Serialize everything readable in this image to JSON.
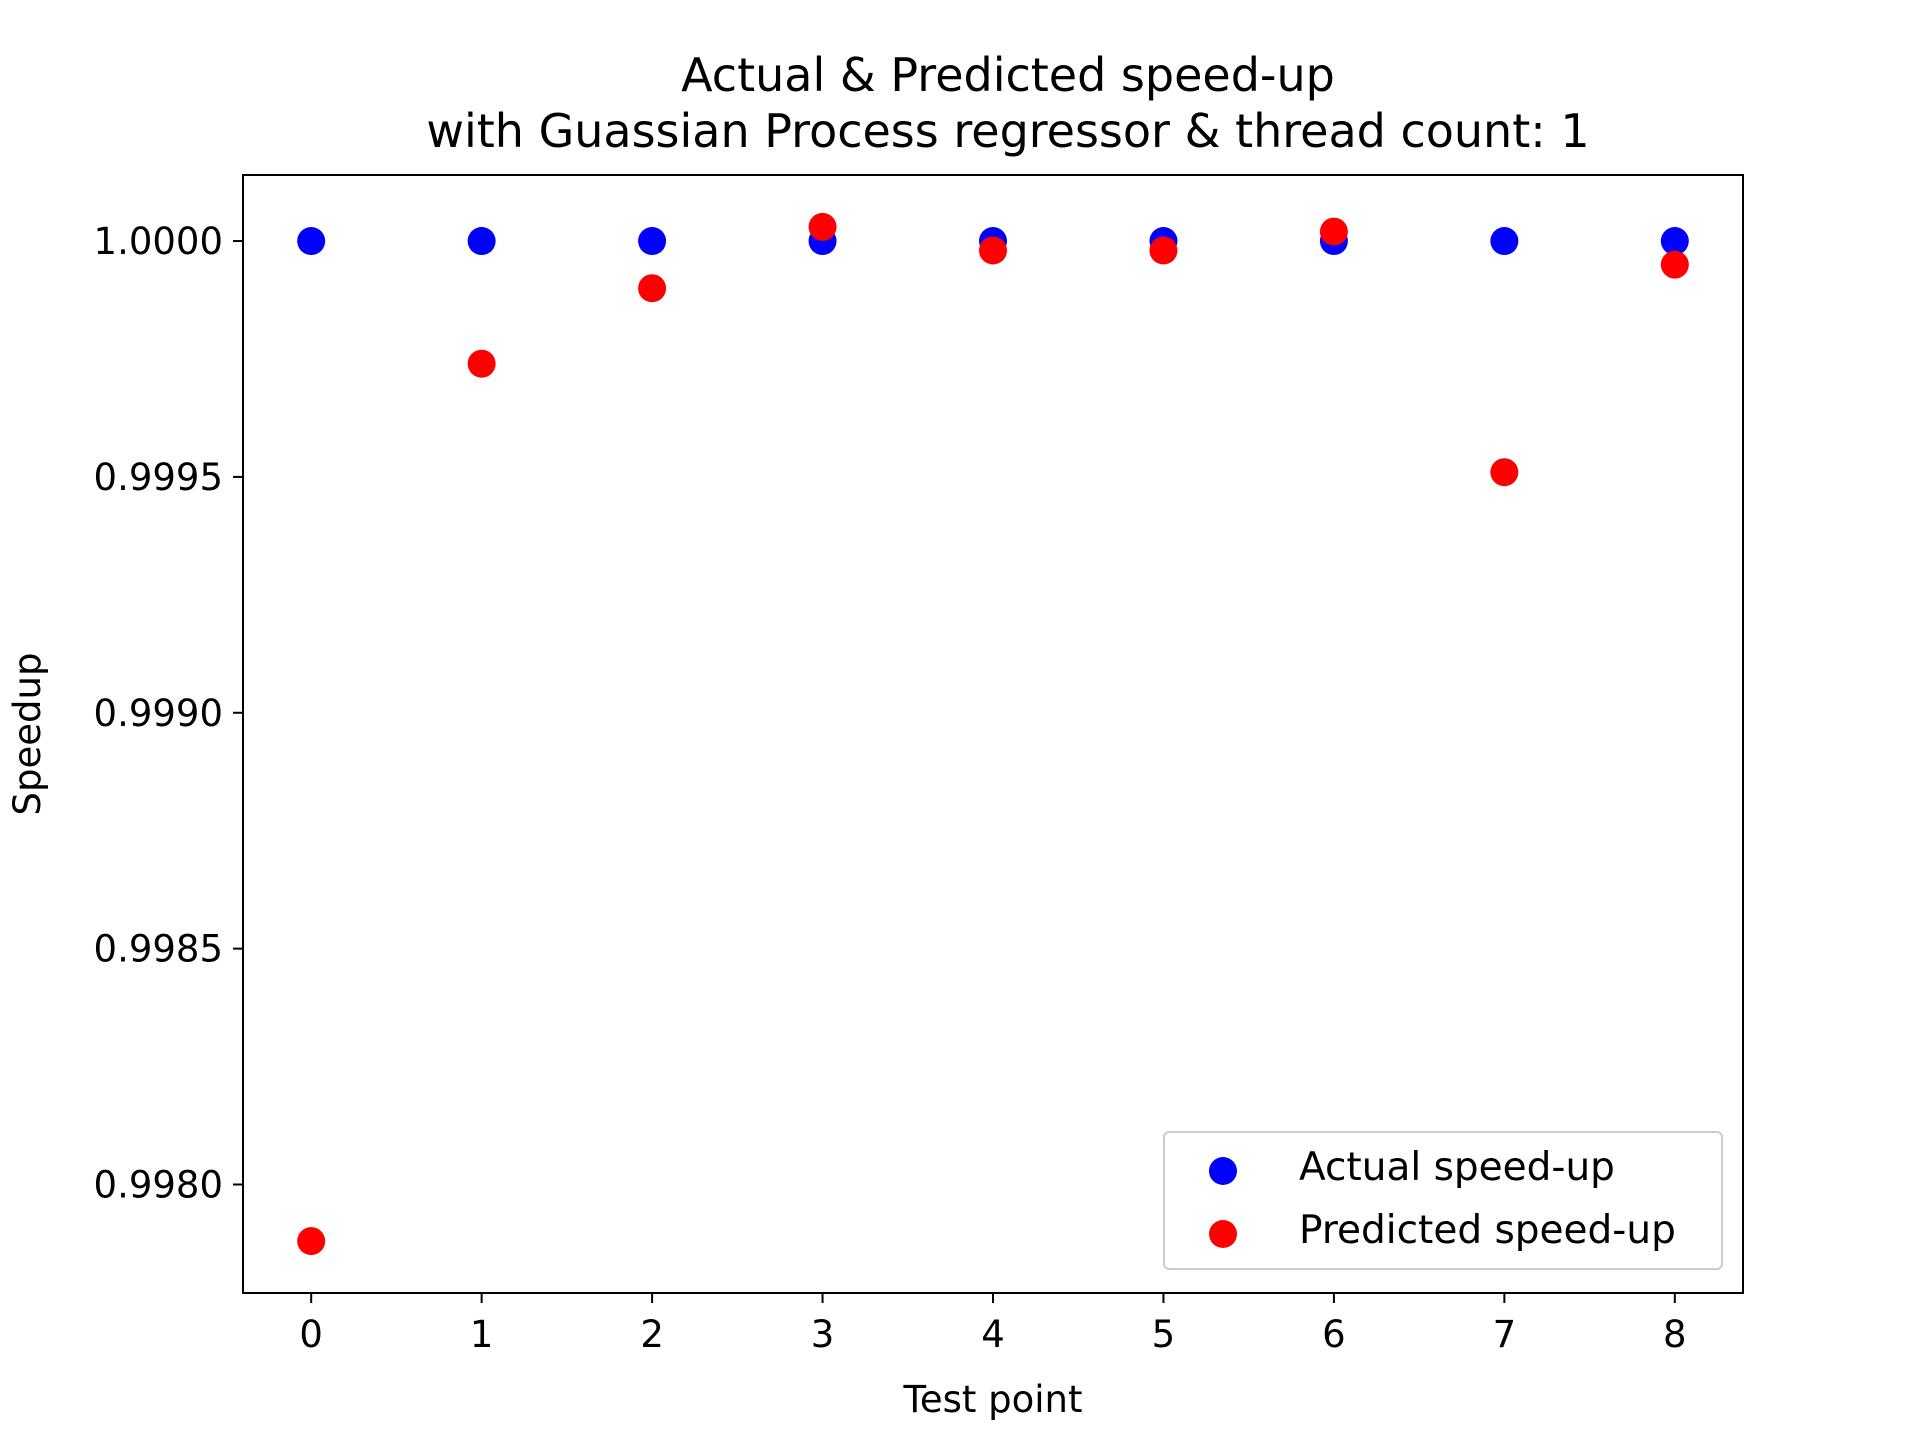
{
  "chart_data": {
    "type": "scatter",
    "title": "Actual & Predicted speed-up",
    "subtitle": "with Guassian Process regressor & thread count: 1",
    "xlabel": "Test point",
    "ylabel": "Speedup",
    "xlim": [
      -0.4,
      8.4
    ],
    "ylim": [
      0.99777,
      1.00014
    ],
    "xticks": [
      0,
      1,
      2,
      3,
      4,
      5,
      6,
      7,
      8
    ],
    "xtick_labels": [
      "0",
      "1",
      "2",
      "3",
      "4",
      "5",
      "6",
      "7",
      "8"
    ],
    "yticks": [
      0.998,
      0.9985,
      0.999,
      0.9995,
      1.0
    ],
    "ytick_labels": [
      "0.9980",
      "0.9985",
      "0.9990",
      "0.9995",
      "1.0000"
    ],
    "grid": false,
    "legend_position": "lower-right",
    "series": [
      {
        "name": "Actual speed-up",
        "color": "#0000ff",
        "x": [
          0,
          1,
          2,
          3,
          4,
          5,
          6,
          7,
          8
        ],
        "y": [
          1.0,
          1.0,
          1.0,
          1.0,
          1.0,
          1.0,
          1.0,
          1.0,
          1.0
        ]
      },
      {
        "name": "Predicted speed-up",
        "color": "#ff0000",
        "x": [
          0,
          1,
          2,
          3,
          4,
          5,
          6,
          7,
          8
        ],
        "y": [
          0.99788,
          0.99974,
          0.9999,
          1.00003,
          0.99998,
          0.99998,
          1.00002,
          0.99951,
          0.99995
        ]
      }
    ]
  }
}
